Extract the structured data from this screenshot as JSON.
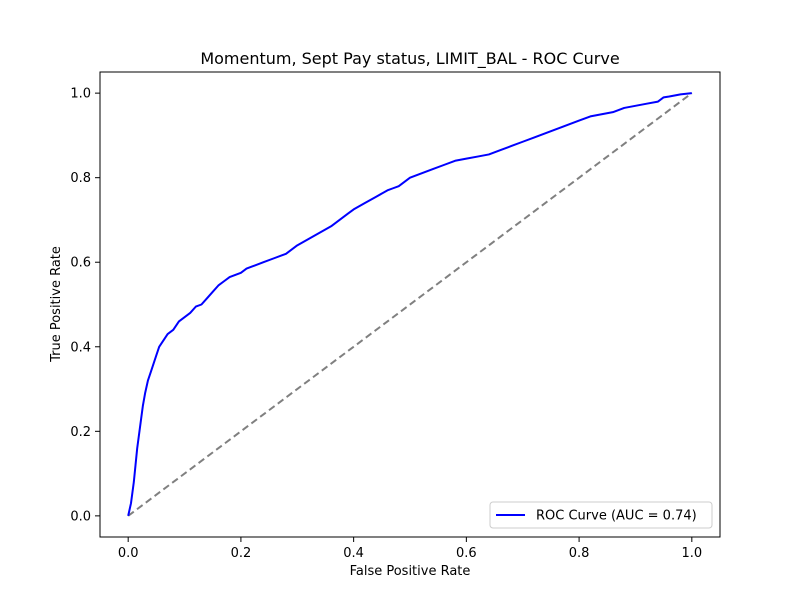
{
  "chart_data": {
    "type": "line",
    "title": "Momentum, Sept Pay status, LIMIT_BAL - ROC Curve",
    "xlabel": "False Positive Rate",
    "ylabel": "True Positive Rate",
    "xlim": [
      -0.05,
      1.05
    ],
    "ylim": [
      -0.05,
      1.05
    ],
    "xticks": [
      0.0,
      0.2,
      0.4,
      0.6,
      0.8,
      1.0
    ],
    "yticks": [
      0.0,
      0.2,
      0.4,
      0.6,
      0.8,
      1.0
    ],
    "xtick_labels": [
      "0.0",
      "0.2",
      "0.4",
      "0.6",
      "0.8",
      "1.0"
    ],
    "ytick_labels": [
      "0.0",
      "0.2",
      "0.4",
      "0.6",
      "0.8",
      "1.0"
    ],
    "grid": false,
    "legend_position": "lower-right",
    "series": [
      {
        "name": "ROC Curve (AUC = 0.74)",
        "color": "#0000ff",
        "style": "solid",
        "x": [
          0.0,
          0.005,
          0.01,
          0.013,
          0.016,
          0.02,
          0.023,
          0.026,
          0.03,
          0.035,
          0.04,
          0.045,
          0.05,
          0.055,
          0.06,
          0.065,
          0.07,
          0.08,
          0.09,
          0.1,
          0.11,
          0.12,
          0.13,
          0.14,
          0.15,
          0.16,
          0.17,
          0.18,
          0.19,
          0.2,
          0.21,
          0.22,
          0.24,
          0.26,
          0.28,
          0.29,
          0.3,
          0.32,
          0.34,
          0.36,
          0.38,
          0.39,
          0.4,
          0.42,
          0.44,
          0.46,
          0.47,
          0.48,
          0.49,
          0.5,
          0.52,
          0.54,
          0.56,
          0.58,
          0.6,
          0.62,
          0.64,
          0.66,
          0.68,
          0.7,
          0.72,
          0.74,
          0.76,
          0.78,
          0.8,
          0.82,
          0.84,
          0.86,
          0.88,
          0.9,
          0.92,
          0.94,
          0.95,
          0.96,
          0.98,
          1.0
        ],
        "y": [
          0.0,
          0.03,
          0.08,
          0.12,
          0.16,
          0.2,
          0.23,
          0.26,
          0.29,
          0.32,
          0.34,
          0.36,
          0.38,
          0.4,
          0.41,
          0.42,
          0.43,
          0.44,
          0.46,
          0.47,
          0.48,
          0.495,
          0.5,
          0.515,
          0.53,
          0.545,
          0.555,
          0.565,
          0.57,
          0.575,
          0.585,
          0.59,
          0.6,
          0.61,
          0.62,
          0.63,
          0.64,
          0.655,
          0.67,
          0.685,
          0.705,
          0.715,
          0.725,
          0.74,
          0.755,
          0.77,
          0.775,
          0.78,
          0.79,
          0.8,
          0.81,
          0.82,
          0.83,
          0.84,
          0.845,
          0.85,
          0.855,
          0.865,
          0.875,
          0.885,
          0.895,
          0.905,
          0.915,
          0.925,
          0.935,
          0.945,
          0.95,
          0.955,
          0.965,
          0.97,
          0.975,
          0.98,
          0.99,
          0.992,
          0.997,
          1.0
        ]
      },
      {
        "color": "#808080",
        "style": "dashed",
        "x": [
          0.0,
          1.0
        ],
        "y": [
          0.0,
          1.0
        ]
      }
    ]
  }
}
